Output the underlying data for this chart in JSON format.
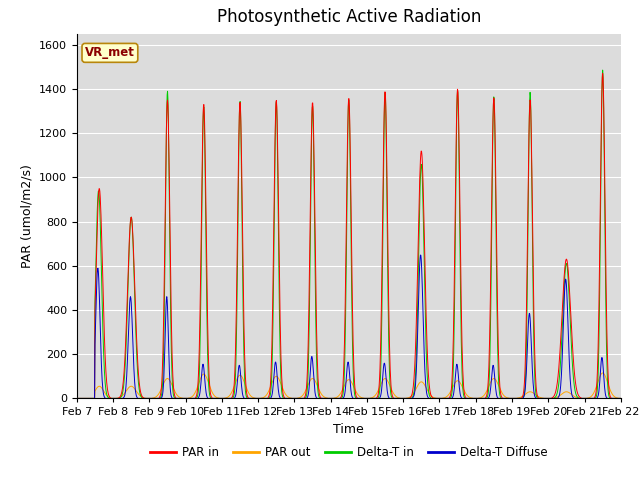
{
  "title": "Photosynthetic Active Radiation",
  "ylabel": "PAR (umol/m2/s)",
  "xlabel": "Time",
  "ylim": [
    0,
    1650
  ],
  "xlim": [
    0,
    15
  ],
  "xtick_labels": [
    "Feb 7",
    "Feb 8",
    "Feb 9",
    "Feb 10",
    "Feb 11",
    "Feb 12",
    "Feb 13",
    "Feb 14",
    "Feb 15",
    "Feb 16",
    "Feb 17",
    "Feb 18",
    "Feb 19",
    "Feb 20",
    "Feb 21",
    "Feb 22"
  ],
  "xtick_positions": [
    0,
    1,
    2,
    3,
    4,
    5,
    6,
    7,
    8,
    9,
    10,
    11,
    12,
    13,
    14,
    15
  ],
  "label_box": "VR_met",
  "label_box_face": "#ffffcc",
  "label_box_edge": "#b8860b",
  "label_box_text": "#8b0000",
  "colors": {
    "PAR_in": "#ff0000",
    "PAR_out": "#ffa500",
    "Delta_T_in": "#00cc00",
    "Delta_T_Diffuse": "#0000cc"
  },
  "legend_labels": [
    "PAR in",
    "PAR out",
    "Delta-T in",
    "Delta-T Diffuse"
  ],
  "bg_color": "#dcdcdc",
  "grid_color": "#ffffff",
  "title_fontsize": 12,
  "axis_fontsize": 9,
  "tick_fontsize": 8,
  "linewidth": 0.7
}
